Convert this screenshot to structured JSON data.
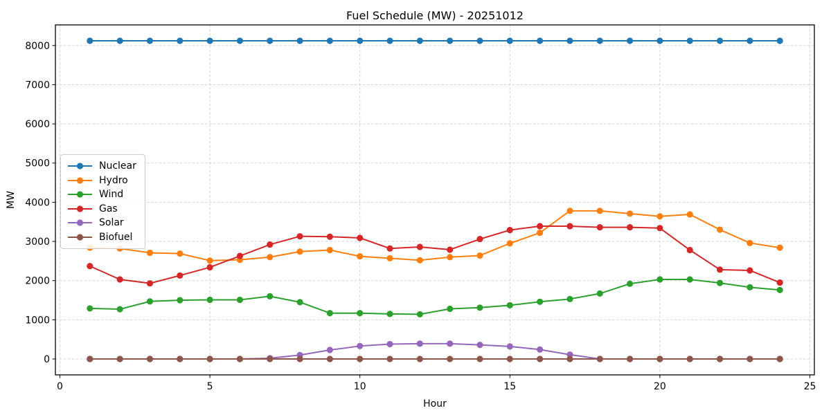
{
  "figure": {
    "background": "#ffffff",
    "spine_color": "#000000",
    "grid_color": "#d4d4d4",
    "text_color": "#000000"
  },
  "chart_data": {
    "type": "line",
    "title": "Fuel Schedule (MW) - 20251012",
    "xlabel": "Hour",
    "ylabel": "MW",
    "grid": true,
    "legend_position": "center-left",
    "marker": "circle",
    "xlim": [
      -0.15,
      25.15
    ],
    "ylim": [
      -406,
      8526
    ],
    "xticks": [
      0,
      5,
      10,
      15,
      20,
      25
    ],
    "yticks": [
      0,
      1000,
      2000,
      3000,
      4000,
      5000,
      6000,
      7000,
      8000
    ],
    "x": [
      1,
      2,
      3,
      4,
      5,
      6,
      7,
      8,
      9,
      10,
      11,
      12,
      13,
      14,
      15,
      16,
      17,
      18,
      19,
      20,
      21,
      22,
      23,
      24
    ],
    "series": [
      {
        "name": "Nuclear",
        "color": "#1f77b4",
        "values": [
          8120,
          8120,
          8120,
          8120,
          8120,
          8120,
          8120,
          8120,
          8120,
          8120,
          8120,
          8120,
          8120,
          8120,
          8120,
          8120,
          8120,
          8120,
          8120,
          8120,
          8120,
          8120,
          8120,
          8120
        ]
      },
      {
        "name": "Hydro",
        "color": "#ff7f0e",
        "values": [
          2840,
          2820,
          2710,
          2690,
          2510,
          2530,
          2600,
          2740,
          2780,
          2620,
          2570,
          2520,
          2600,
          2640,
          2950,
          3220,
          3780,
          3780,
          3710,
          3640,
          3690,
          3300,
          2960,
          2840
        ]
      },
      {
        "name": "Wind",
        "color": "#2ca02c",
        "values": [
          1290,
          1270,
          1470,
          1500,
          1510,
          1510,
          1600,
          1450,
          1170,
          1170,
          1150,
          1140,
          1280,
          1310,
          1370,
          1460,
          1530,
          1670,
          1920,
          2030,
          2030,
          1940,
          1830,
          1760
        ]
      },
      {
        "name": "Gas",
        "color": "#d62728",
        "values": [
          2370,
          2030,
          1930,
          2130,
          2340,
          2630,
          2920,
          3130,
          3120,
          3090,
          2820,
          2860,
          2790,
          3060,
          3290,
          3390,
          3390,
          3360,
          3360,
          3340,
          2780,
          2280,
          2260,
          1950
        ]
      },
      {
        "name": "Solar",
        "color": "#9467bd",
        "values": [
          0,
          0,
          0,
          0,
          0,
          0,
          20,
          100,
          230,
          330,
          380,
          390,
          390,
          360,
          320,
          240,
          110,
          0,
          0,
          0,
          0,
          0,
          0,
          0
        ]
      },
      {
        "name": "Biofuel",
        "color": "#8c564b",
        "values": [
          0,
          0,
          0,
          0,
          0,
          0,
          0,
          0,
          0,
          0,
          0,
          0,
          0,
          0,
          0,
          0,
          0,
          0,
          0,
          0,
          0,
          0,
          0,
          0
        ]
      }
    ]
  }
}
